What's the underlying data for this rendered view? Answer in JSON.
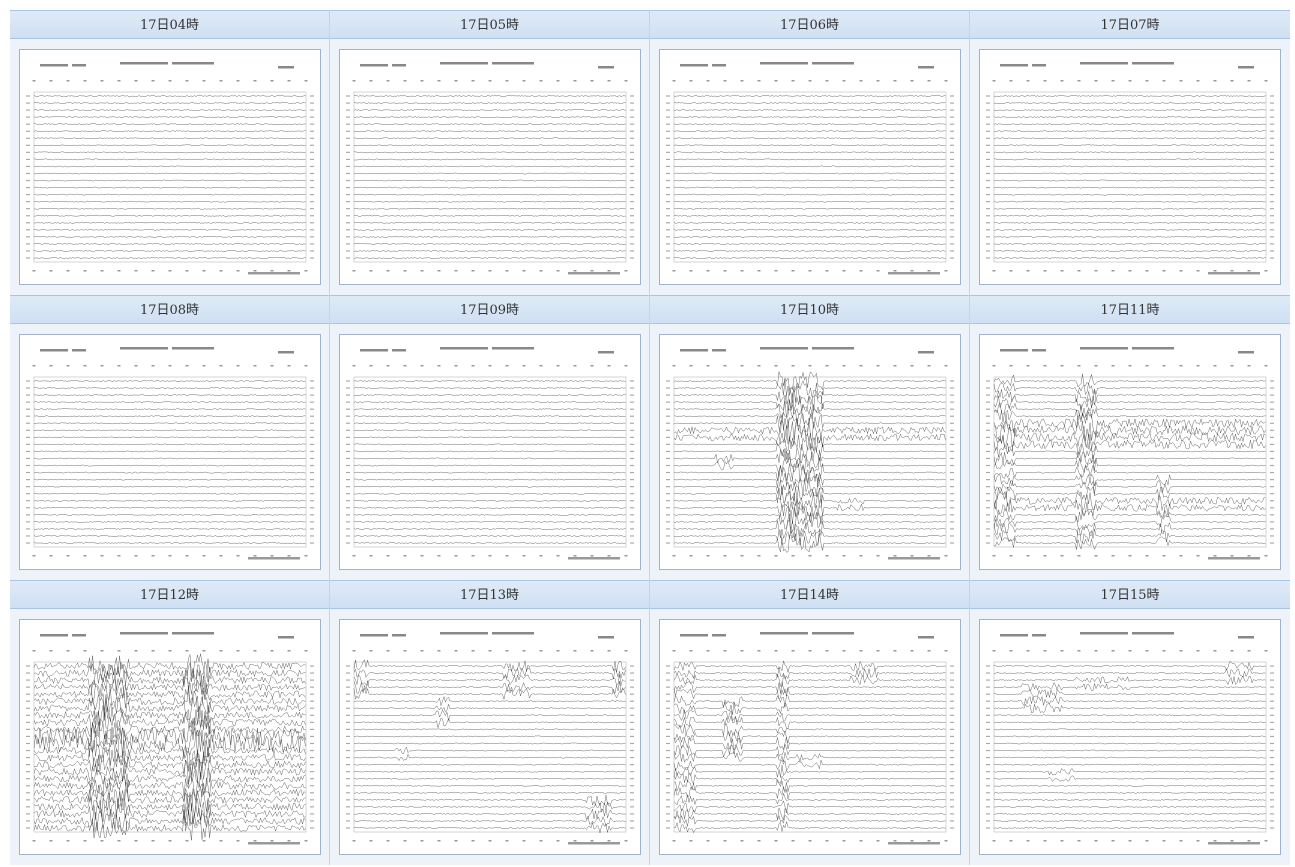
{
  "grid": {
    "cells": [
      {
        "label": "17日04時"
      },
      {
        "label": "17日05時"
      },
      {
        "label": "17日06時"
      },
      {
        "label": "17日07時"
      },
      {
        "label": "17日08時"
      },
      {
        "label": "17日09時"
      },
      {
        "label": "17日10時"
      },
      {
        "label": "17日11時"
      },
      {
        "label": "17日12時"
      },
      {
        "label": "17日13時"
      },
      {
        "label": "17日14時"
      },
      {
        "label": "17日15時"
      }
    ]
  }
}
